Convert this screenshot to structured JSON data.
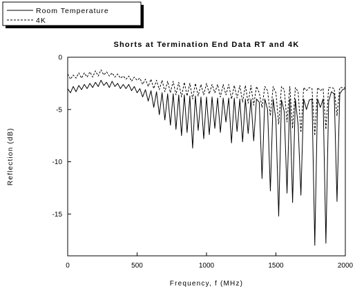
{
  "chart_data": {
    "type": "line",
    "title": "Shorts at Termination End Data RT and 4K",
    "xlabel": "Frequency, f (MHz)",
    "ylabel": "Reflection (dB)",
    "xlim": [
      0,
      2000
    ],
    "ylim": [
      -19,
      0
    ],
    "xticks": [
      0,
      500,
      1000,
      1500,
      2000
    ],
    "xtick_labels": [
      "0",
      "500",
      "1000",
      "1500",
      "2000"
    ],
    "yticks": [
      0,
      -5,
      -10,
      -15
    ],
    "ytick_labels": [
      "0",
      "-5",
      "-10",
      "-15"
    ],
    "grid": false,
    "legend_position": "top-left, outside plot",
    "series": [
      {
        "name": "Room Temperature",
        "style": "solid",
        "color": "#000000",
        "points": [
          [
            0,
            -3.0
          ],
          [
            20,
            -3.4
          ],
          [
            40,
            -2.8
          ],
          [
            60,
            -3.3
          ],
          [
            80,
            -2.7
          ],
          [
            100,
            -3.1
          ],
          [
            120,
            -2.6
          ],
          [
            140,
            -3.0
          ],
          [
            160,
            -2.5
          ],
          [
            180,
            -2.9
          ],
          [
            200,
            -2.4
          ],
          [
            220,
            -2.8
          ],
          [
            240,
            -2.2
          ],
          [
            260,
            -2.7
          ],
          [
            280,
            -2.4
          ],
          [
            300,
            -2.9
          ],
          [
            320,
            -2.3
          ],
          [
            340,
            -2.8
          ],
          [
            360,
            -2.5
          ],
          [
            380,
            -3.0
          ],
          [
            400,
            -2.6
          ],
          [
            420,
            -3.0
          ],
          [
            440,
            -2.6
          ],
          [
            460,
            -3.2
          ],
          [
            480,
            -2.8
          ],
          [
            500,
            -3.4
          ],
          [
            520,
            -3.0
          ],
          [
            540,
            -3.8
          ],
          [
            560,
            -3.1
          ],
          [
            580,
            -4.2
          ],
          [
            600,
            -3.2
          ],
          [
            620,
            -4.8
          ],
          [
            640,
            -3.3
          ],
          [
            660,
            -5.5
          ],
          [
            680,
            -3.4
          ],
          [
            700,
            -6.0
          ],
          [
            720,
            -3.5
          ],
          [
            740,
            -6.5
          ],
          [
            760,
            -3.5
          ],
          [
            780,
            -6.9
          ],
          [
            800,
            -3.6
          ],
          [
            820,
            -7.5
          ],
          [
            840,
            -3.6
          ],
          [
            860,
            -7.2
          ],
          [
            880,
            -3.7
          ],
          [
            900,
            -8.7
          ],
          [
            920,
            -3.7
          ],
          [
            940,
            -7.0
          ],
          [
            960,
            -3.8
          ],
          [
            980,
            -7.8
          ],
          [
            1000,
            -3.8
          ],
          [
            1020,
            -7.4
          ],
          [
            1040,
            -3.8
          ],
          [
            1060,
            -6.8
          ],
          [
            1080,
            -3.9
          ],
          [
            1100,
            -7.2
          ],
          [
            1120,
            -3.9
          ],
          [
            1140,
            -6.2
          ],
          [
            1160,
            -3.9
          ],
          [
            1180,
            -8.2
          ],
          [
            1200,
            -3.9
          ],
          [
            1220,
            -7.1
          ],
          [
            1240,
            -4.0
          ],
          [
            1260,
            -8.1
          ],
          [
            1280,
            -4.0
          ],
          [
            1300,
            -7.3
          ],
          [
            1320,
            -4.0
          ],
          [
            1340,
            -8.0
          ],
          [
            1360,
            -4.0
          ],
          [
            1380,
            -4.3
          ],
          [
            1400,
            -11.6
          ],
          [
            1420,
            -4.0
          ],
          [
            1440,
            -5.0
          ],
          [
            1460,
            -12.8
          ],
          [
            1480,
            -4.0
          ],
          [
            1500,
            -6.0
          ],
          [
            1520,
            -15.2
          ],
          [
            1540,
            -4.1
          ],
          [
            1560,
            -5.2
          ],
          [
            1580,
            -13.0
          ],
          [
            1600,
            -4.0
          ],
          [
            1620,
            -13.9
          ],
          [
            1640,
            -4.0
          ],
          [
            1660,
            -6.5
          ],
          [
            1680,
            -13.2
          ],
          [
            1700,
            -4.0
          ],
          [
            1720,
            -5.0
          ],
          [
            1740,
            -4.1
          ],
          [
            1760,
            -4.0
          ],
          [
            1780,
            -18.0
          ],
          [
            1800,
            -4.0
          ],
          [
            1820,
            -4.8
          ],
          [
            1840,
            -4.0
          ],
          [
            1860,
            -17.8
          ],
          [
            1880,
            -4.2
          ],
          [
            1900,
            -3.3
          ],
          [
            1920,
            -3.5
          ],
          [
            1940,
            -13.8
          ],
          [
            1960,
            -3.5
          ],
          [
            1980,
            -3.1
          ],
          [
            2000,
            -3.0
          ]
        ]
      },
      {
        "name": "4K",
        "style": "dashed",
        "color": "#000000",
        "points": [
          [
            0,
            -1.6
          ],
          [
            20,
            -2.1
          ],
          [
            40,
            -1.7
          ],
          [
            60,
            -2.0
          ],
          [
            80,
            -1.5
          ],
          [
            100,
            -2.0
          ],
          [
            120,
            -1.5
          ],
          [
            140,
            -1.9
          ],
          [
            160,
            -1.4
          ],
          [
            180,
            -1.9
          ],
          [
            200,
            -1.3
          ],
          [
            220,
            -1.8
          ],
          [
            240,
            -1.2
          ],
          [
            260,
            -1.7
          ],
          [
            280,
            -1.4
          ],
          [
            300,
            -1.8
          ],
          [
            320,
            -1.5
          ],
          [
            340,
            -1.9
          ],
          [
            360,
            -1.6
          ],
          [
            380,
            -2.0
          ],
          [
            400,
            -1.8
          ],
          [
            420,
            -2.1
          ],
          [
            440,
            -1.8
          ],
          [
            460,
            -2.3
          ],
          [
            480,
            -1.9
          ],
          [
            500,
            -2.2
          ],
          [
            520,
            -2.0
          ],
          [
            540,
            -2.6
          ],
          [
            560,
            -2.1
          ],
          [
            580,
            -2.8
          ],
          [
            600,
            -2.1
          ],
          [
            620,
            -3.0
          ],
          [
            640,
            -2.2
          ],
          [
            660,
            -3.1
          ],
          [
            680,
            -2.2
          ],
          [
            700,
            -3.3
          ],
          [
            720,
            -2.3
          ],
          [
            740,
            -3.4
          ],
          [
            760,
            -2.3
          ],
          [
            780,
            -3.6
          ],
          [
            800,
            -2.4
          ],
          [
            820,
            -3.8
          ],
          [
            840,
            -2.4
          ],
          [
            860,
            -3.7
          ],
          [
            880,
            -2.5
          ],
          [
            900,
            -4.0
          ],
          [
            920,
            -2.5
          ],
          [
            940,
            -3.7
          ],
          [
            960,
            -2.6
          ],
          [
            980,
            -3.6
          ],
          [
            1000,
            -2.5
          ],
          [
            1020,
            -3.5
          ],
          [
            1040,
            -2.6
          ],
          [
            1060,
            -3.4
          ],
          [
            1080,
            -2.6
          ],
          [
            1100,
            -3.8
          ],
          [
            1120,
            -2.6
          ],
          [
            1140,
            -3.6
          ],
          [
            1160,
            -2.6
          ],
          [
            1180,
            -4.0
          ],
          [
            1200,
            -2.7
          ],
          [
            1220,
            -3.9
          ],
          [
            1240,
            -2.7
          ],
          [
            1260,
            -4.3
          ],
          [
            1280,
            -2.7
          ],
          [
            1300,
            -4.4
          ],
          [
            1320,
            -2.7
          ],
          [
            1340,
            -4.6
          ],
          [
            1360,
            -2.8
          ],
          [
            1380,
            -3.4
          ],
          [
            1400,
            -4.8
          ],
          [
            1420,
            -2.8
          ],
          [
            1440,
            -3.2
          ],
          [
            1460,
            -5.6
          ],
          [
            1480,
            -2.8
          ],
          [
            1500,
            -3.4
          ],
          [
            1520,
            -6.4
          ],
          [
            1540,
            -2.8
          ],
          [
            1560,
            -3.1
          ],
          [
            1580,
            -6.2
          ],
          [
            1600,
            -2.8
          ],
          [
            1620,
            -6.8
          ],
          [
            1640,
            -2.9
          ],
          [
            1660,
            -3.3
          ],
          [
            1680,
            -7.2
          ],
          [
            1700,
            -2.9
          ],
          [
            1720,
            -3.2
          ],
          [
            1740,
            -2.9
          ],
          [
            1760,
            -3.0
          ],
          [
            1780,
            -7.5
          ],
          [
            1800,
            -2.9
          ],
          [
            1820,
            -3.2
          ],
          [
            1840,
            -3.0
          ],
          [
            1860,
            -6.9
          ],
          [
            1880,
            -2.9
          ],
          [
            1900,
            -2.9
          ],
          [
            1920,
            -3.0
          ],
          [
            1940,
            -5.6
          ],
          [
            1960,
            -2.9
          ],
          [
            1980,
            -2.9
          ],
          [
            2000,
            -2.9
          ]
        ]
      }
    ]
  }
}
